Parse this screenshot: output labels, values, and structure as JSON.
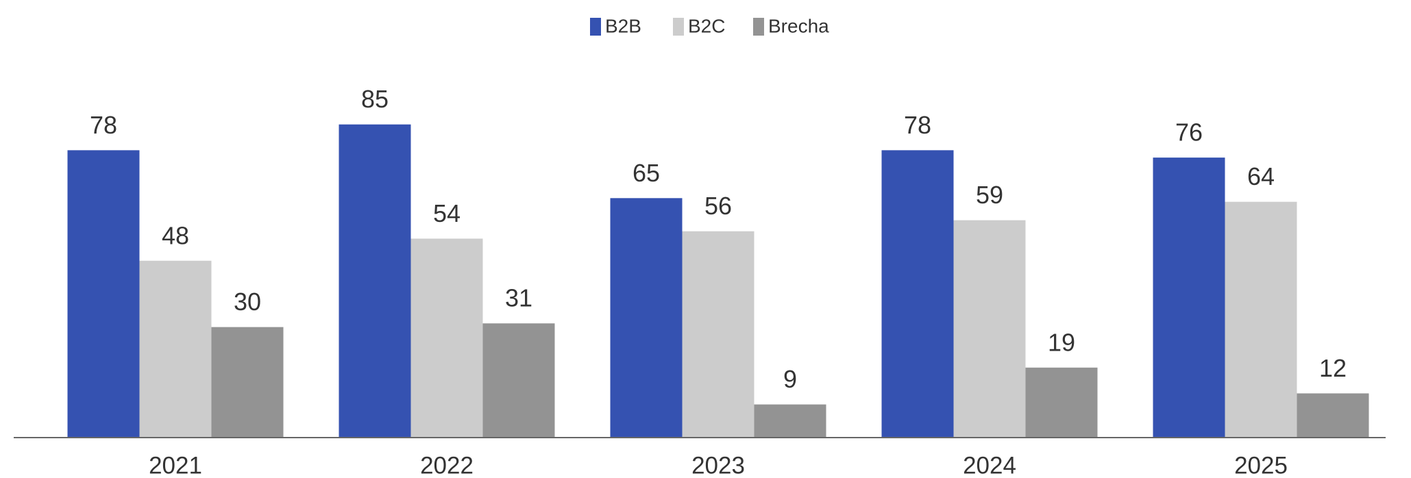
{
  "chart_data": {
    "type": "bar",
    "categories": [
      "2021",
      "2022",
      "2023",
      "2024",
      "2025"
    ],
    "series": [
      {
        "name": "B2B",
        "color": "#3552b1",
        "values": [
          78,
          85,
          65,
          78,
          76
        ]
      },
      {
        "name": "B2C",
        "color": "#cccccc",
        "values": [
          48,
          54,
          56,
          59,
          64
        ]
      },
      {
        "name": "Brecha",
        "color": "#939393",
        "values": [
          30,
          31,
          9,
          19,
          12
        ]
      }
    ],
    "ylim": [
      0,
      100
    ],
    "legend": "top"
  }
}
